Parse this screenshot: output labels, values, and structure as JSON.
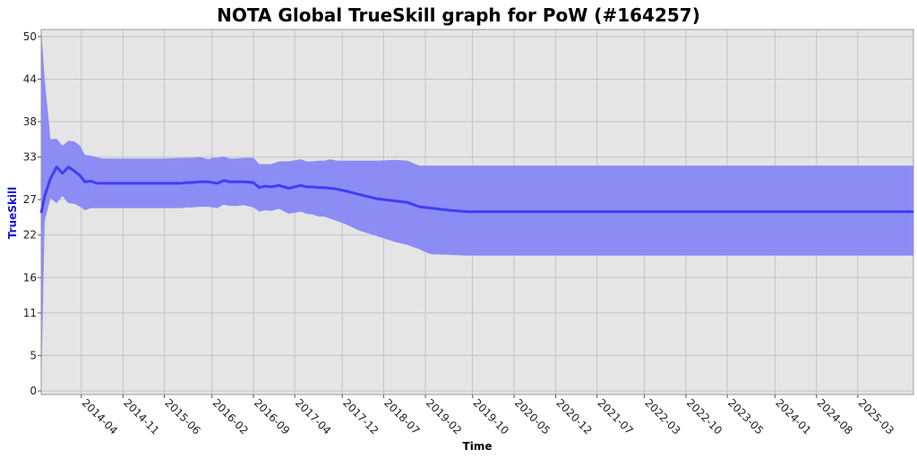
{
  "chart_data": {
    "type": "line",
    "title": "NOTA Global TrueSkill graph for PoW (#164257)",
    "xlabel": "Time",
    "ylabel": "TrueSkill",
    "x_range": [
      "2013-09-07",
      "2025-12-12"
    ],
    "ylim": [
      -0.5,
      51
    ],
    "grid": true,
    "yticks": [
      0,
      5,
      11,
      16,
      22,
      27,
      33,
      38,
      44,
      50
    ],
    "xticks": [
      "2014-04",
      "2014-11",
      "2015-06",
      "2016-02",
      "2016-09",
      "2017-04",
      "2017-12",
      "2018-07",
      "2019-02",
      "2019-10",
      "2020-05",
      "2020-12",
      "2021-07",
      "2022-03",
      "2022-10",
      "2023-05",
      "2024-01",
      "2024-08",
      "2025-03"
    ],
    "colors": {
      "line": "#3f3ff5",
      "band": "#8c8cf5",
      "plot_bg": "#e5e5e5",
      "grid": "#c4c4c4",
      "ylabel": "#1515d8"
    },
    "series": [
      {
        "dates": [
          "2013-09-07",
          "2013-09-25",
          "2013-10-25",
          "2013-11-25",
          "2013-12-25",
          "2014-01-25",
          "2014-02-25",
          "2014-03-25",
          "2014-04-20",
          "2014-05-20",
          "2014-06-20",
          "2014-07-20",
          "2014-08-20",
          "2014-10-01",
          "2014-12-01",
          "2015-03-01",
          "2015-06-01",
          "2015-09-01",
          "2015-09-20",
          "2015-10-20",
          "2015-12-01",
          "2016-01-15",
          "2016-02-01",
          "2016-03-01",
          "2016-04-01",
          "2016-05-01",
          "2016-06-01",
          "2016-07-15",
          "2016-09-01",
          "2016-10-01",
          "2016-11-01",
          "2016-12-01",
          "2017-01-10",
          "2017-03-01",
          "2017-05-01",
          "2017-06-01",
          "2017-07-01",
          "2017-08-01",
          "2017-09-01",
          "2017-10-01",
          "2017-11-01",
          "2017-12-20",
          "2018-03-01",
          "2018-06-01",
          "2018-09-01",
          "2018-11-01",
          "2019-01-01",
          "2019-02-01",
          "2019-03-01",
          "2019-06-01",
          "2019-09-01",
          "2019-11-01",
          "2020-06-01",
          "2021-06-01",
          "2022-06-01",
          "2023-06-01",
          "2024-06-01",
          "2025-12-12"
        ],
        "mu": [
          25.1,
          27.5,
          30.0,
          31.6,
          30.7,
          31.6,
          31.0,
          30.4,
          29.5,
          29.6,
          29.3,
          29.3,
          29.3,
          29.3,
          29.3,
          29.3,
          29.3,
          29.3,
          29.4,
          29.4,
          29.5,
          29.5,
          29.4,
          29.3,
          29.7,
          29.5,
          29.5,
          29.5,
          29.4,
          28.7,
          28.9,
          28.8,
          29.0,
          28.6,
          29.0,
          28.8,
          28.8,
          28.7,
          28.7,
          28.6,
          28.5,
          28.2,
          27.7,
          27.1,
          26.8,
          26.6,
          26.0,
          25.9,
          25.8,
          25.5,
          25.3,
          25.3,
          25.3,
          25.3,
          25.3,
          25.3,
          25.3,
          25.3
        ],
        "lower": [
          0,
          24.0,
          27.2,
          26.5,
          27.5,
          26.5,
          26.4,
          26.0,
          25.5,
          25.8,
          25.8,
          25.8,
          25.8,
          25.8,
          25.8,
          25.8,
          25.8,
          25.8,
          25.9,
          25.9,
          26.0,
          26.0,
          25.9,
          25.8,
          26.3,
          26.1,
          26.1,
          26.2,
          25.9,
          25.3,
          25.5,
          25.4,
          25.7,
          25.0,
          25.3,
          25.0,
          24.9,
          24.6,
          24.6,
          24.3,
          24.0,
          23.5,
          22.6,
          21.8,
          21.0,
          20.6,
          20.0,
          19.6,
          19.3,
          19.2,
          19.1,
          19.1,
          19.1,
          19.1,
          19.1,
          19.1,
          19.1,
          19.1
        ],
        "upper": [
          51,
          44.0,
          35.5,
          35.6,
          34.6,
          35.3,
          35.2,
          34.6,
          33.3,
          33.2,
          33.0,
          32.8,
          32.8,
          32.8,
          32.8,
          32.8,
          32.8,
          32.9,
          32.9,
          32.9,
          33.0,
          32.7,
          32.9,
          32.9,
          33.1,
          32.8,
          32.8,
          32.9,
          32.9,
          32.0,
          32.0,
          32.0,
          32.4,
          32.4,
          32.7,
          32.4,
          32.4,
          32.5,
          32.5,
          32.7,
          32.5,
          32.5,
          32.5,
          32.5,
          32.6,
          32.5,
          31.8,
          31.8,
          31.8,
          31.8,
          31.8,
          31.8,
          31.8,
          31.8,
          31.8,
          31.8,
          31.8,
          31.8
        ]
      }
    ]
  }
}
